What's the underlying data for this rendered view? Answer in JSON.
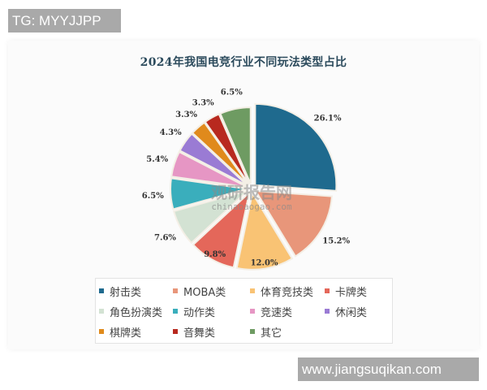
{
  "overlay": {
    "tag_label": "TG: MYYJJPP",
    "url_label": "www.jiangsuqikan.com"
  },
  "watermark": {
    "brand": "观研报告网",
    "domain": "chinabaogao.com"
  },
  "chart_data": {
    "type": "pie",
    "title": "2024年我国电竞行业不同玩法类型占比",
    "categories": [
      "射击类",
      "MOBA类",
      "体育竞技类",
      "卡牌类",
      "角色扮演类",
      "动作类",
      "竞速类",
      "休闲类",
      "棋牌类",
      "音舞类",
      "其它"
    ],
    "values": [
      26.1,
      15.2,
      12.0,
      9.8,
      7.6,
      6.5,
      5.4,
      4.3,
      3.3,
      3.3,
      6.5
    ],
    "labels": [
      "26.1%",
      "15.2%",
      "12.0%",
      "9.8%",
      "7.6%",
      "6.5%",
      "5.4%",
      "4.3%",
      "3.3%",
      "3.3%",
      "6.5%"
    ],
    "colors": [
      "#1f6a8e",
      "#e8967a",
      "#f9c374",
      "#e4675a",
      "#d3e2d3",
      "#3aaebc",
      "#e696c4",
      "#9a7bd4",
      "#e08a1c",
      "#b8291f",
      "#6e9b62"
    ],
    "unit": "%",
    "start_angle": "12 o'clock",
    "direction": "clockwise",
    "exploded": true,
    "legend_position": "bottom",
    "legend_columns": 4
  }
}
